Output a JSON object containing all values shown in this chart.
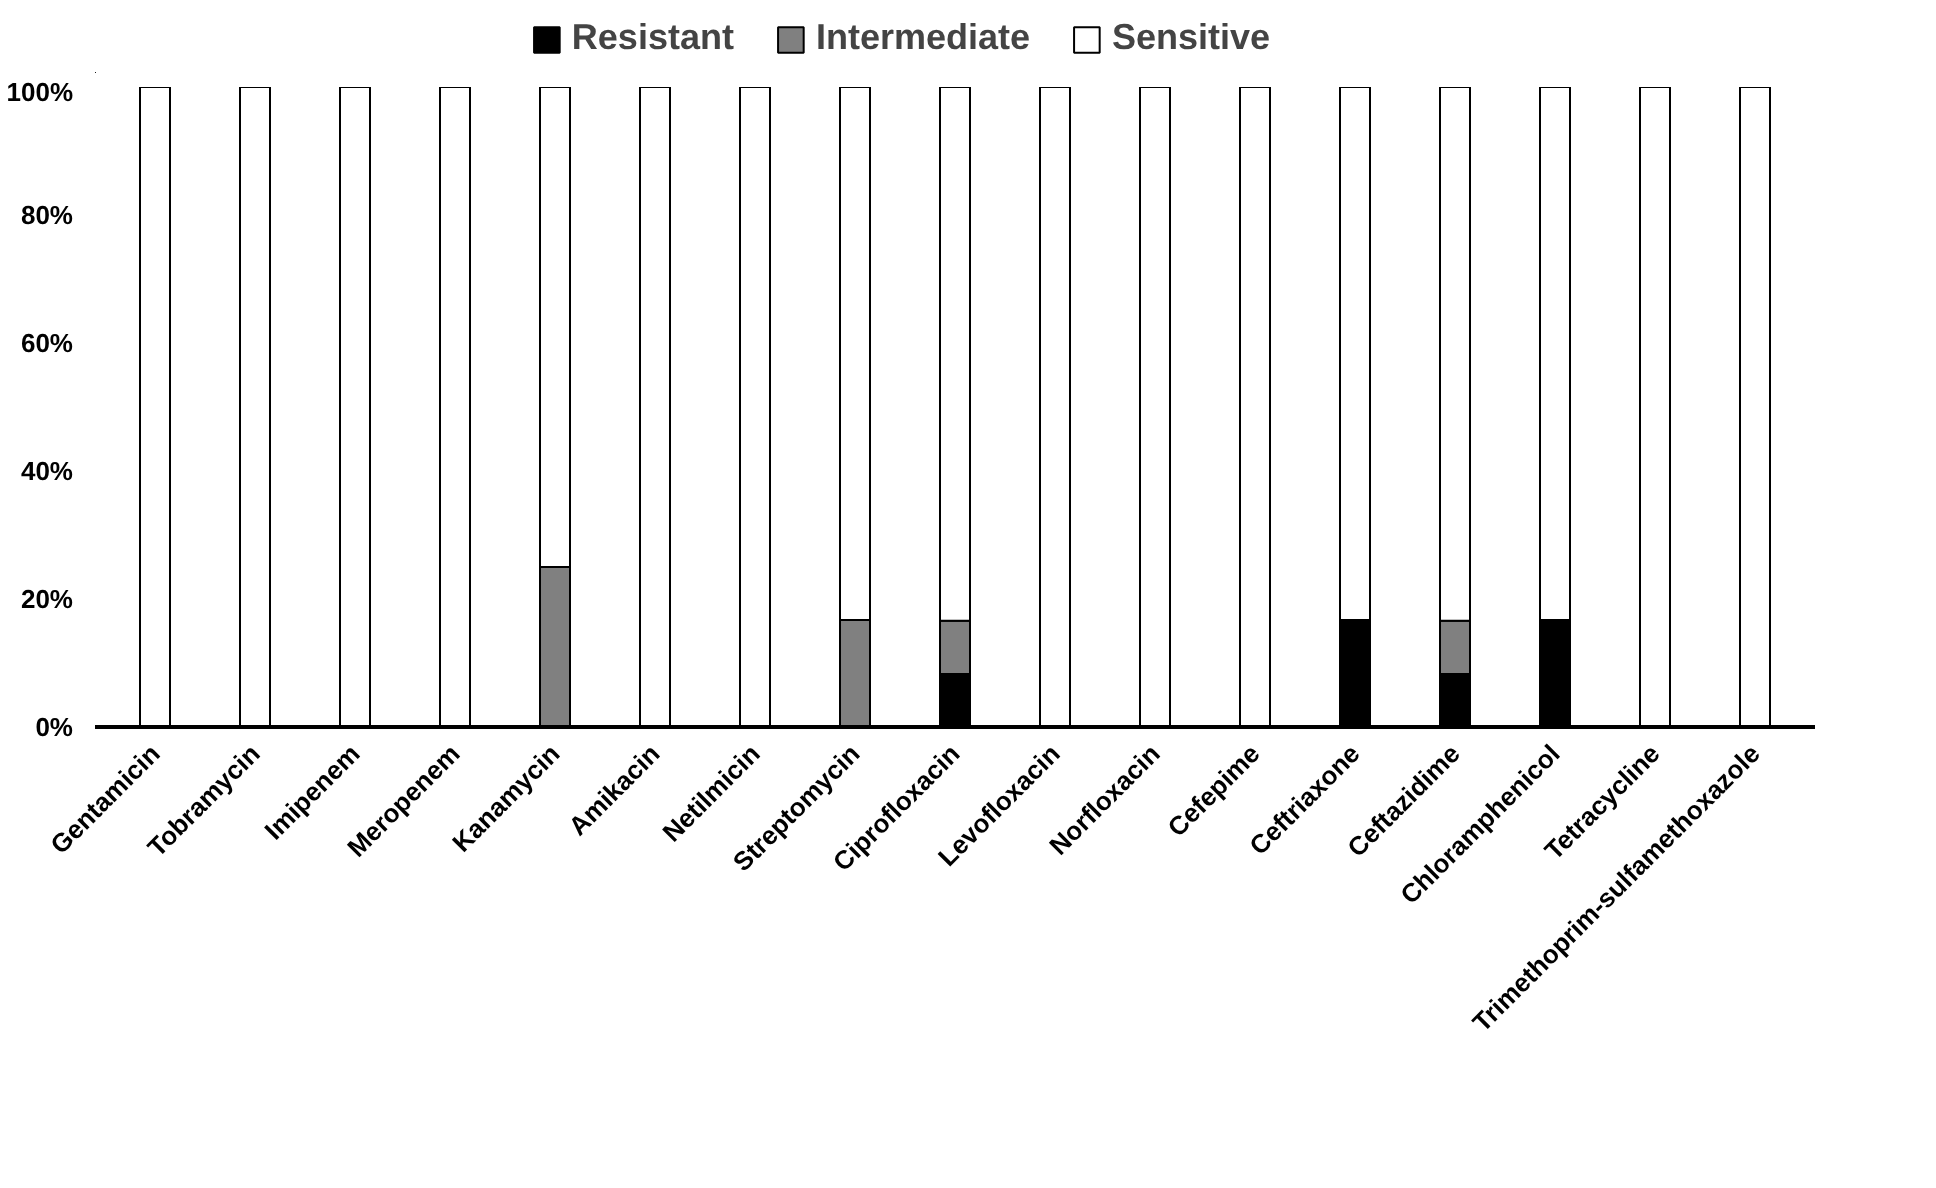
{
  "chart_data": {
    "type": "bar",
    "stacked": true,
    "categories": [
      "Gentamicin",
      "Tobramycin",
      "Imipenem",
      "Meropenem",
      "Kanamycin",
      "Amikacin",
      "Netilmicin",
      "Streptomycin",
      "Ciprofloxacin",
      "Levofloxacin",
      "Norfloxacin",
      "Cefepime",
      "Ceftriaxone",
      "Ceftazidime",
      "Chloramphenicol",
      "Tetracycline",
      "Trimethoprim-sulfamethoxazole"
    ],
    "series": [
      {
        "name": "Resistant",
        "color": "#000000",
        "values": [
          0,
          0,
          0,
          0,
          0,
          0,
          0,
          0,
          8.3,
          0,
          0,
          0,
          16.7,
          8.3,
          16.7,
          0,
          0
        ]
      },
      {
        "name": "Intermediate",
        "color": "#808080",
        "values": [
          0,
          0,
          0,
          0,
          25,
          0,
          0,
          16.7,
          8.3,
          0,
          0,
          0,
          0,
          8.3,
          0,
          0,
          0
        ]
      },
      {
        "name": "Sensitive",
        "color": "#ffffff",
        "values": [
          100,
          100,
          100,
          100,
          75,
          100,
          100,
          83.3,
          83.4,
          100,
          100,
          100,
          83.3,
          83.4,
          83.3,
          100,
          100
        ]
      }
    ],
    "ylim": [
      0,
      100
    ],
    "yticks": [
      {
        "value": 0,
        "label": "0%"
      },
      {
        "value": 20,
        "label": "20%"
      },
      {
        "value": 40,
        "label": "40%"
      },
      {
        "value": 60,
        "label": "60%"
      },
      {
        "value": 80,
        "label": "80%"
      },
      {
        "value": 100,
        "label": "100%"
      }
    ],
    "grid": false,
    "legend": "top"
  }
}
